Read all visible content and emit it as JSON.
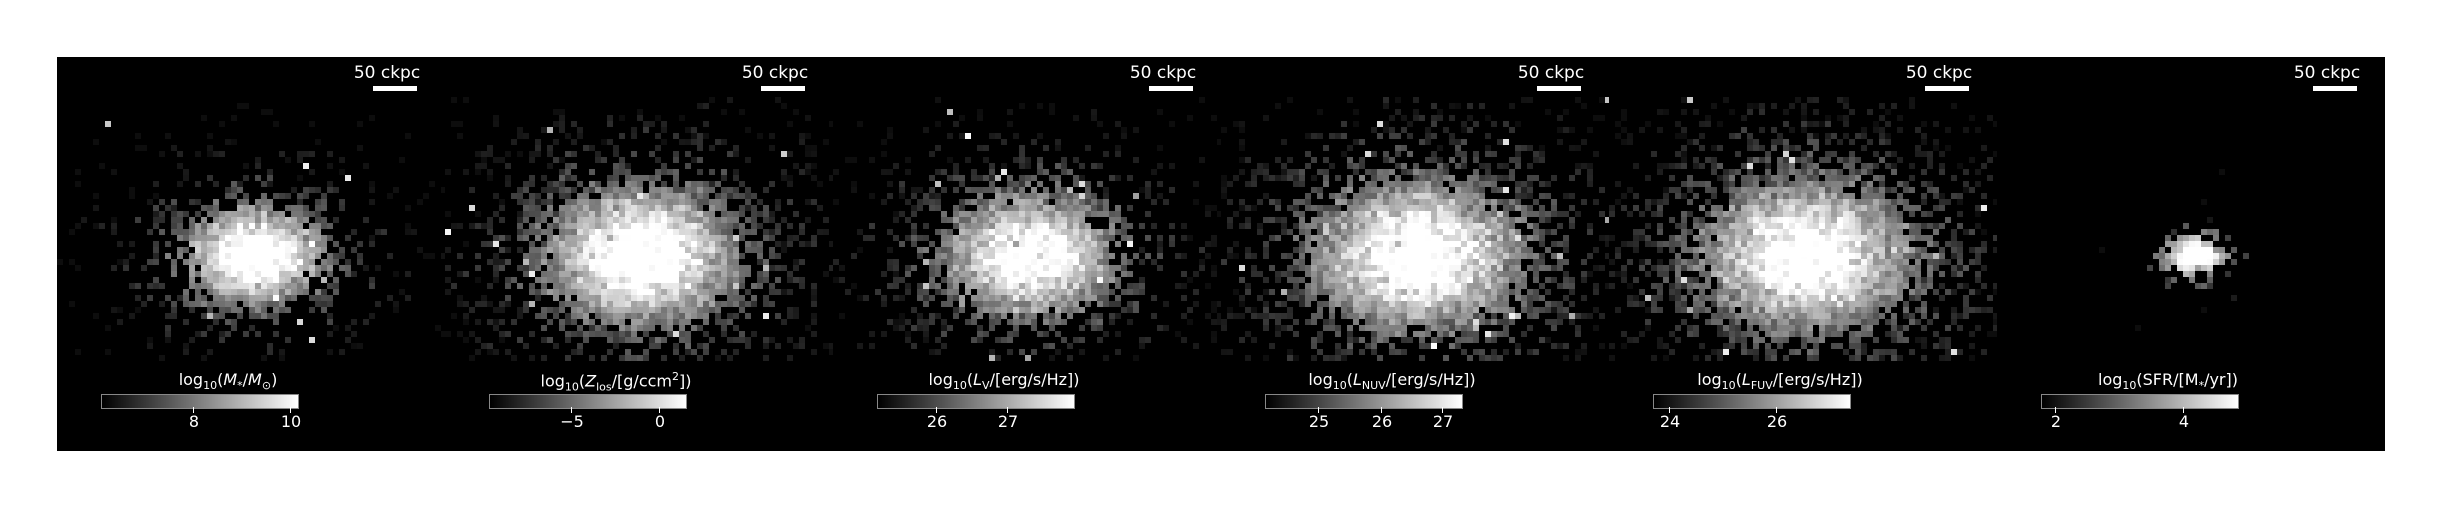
{
  "figure": {
    "panels": [
      {
        "id": "mass",
        "scale_label": "50 ckpc",
        "cb_label": "log10(M*/M⊙)",
        "ticks": [
          {
            "label": "8",
            "frac": 0.47
          },
          {
            "label": "10",
            "frac": 0.96
          }
        ],
        "blob_sigma": 0.75,
        "peak": 0.95,
        "sparsity": 0.35
      },
      {
        "id": "metal",
        "scale_label": "50 ckpc",
        "cb_label": "log10(Zlos/[g/ccm²])",
        "ticks": [
          {
            "label": "−5",
            "frac": 0.42
          },
          {
            "label": "0",
            "frac": 0.87
          }
        ],
        "blob_sigma": 1.0,
        "peak": 0.95,
        "sparsity": 0.55
      },
      {
        "id": "lv",
        "scale_label": "50 ckpc",
        "cb_label": "log10(LV/[erg/s/Hz])",
        "ticks": [
          {
            "label": "26",
            "frac": 0.3
          },
          {
            "label": "27",
            "frac": 0.66
          }
        ],
        "blob_sigma": 0.9,
        "peak": 0.9,
        "sparsity": 0.45
      },
      {
        "id": "lnuv",
        "scale_label": "50 ckpc",
        "cb_label": "log10(LNUV/[erg/s/Hz])",
        "ticks": [
          {
            "label": "25",
            "frac": 0.27
          },
          {
            "label": "26",
            "frac": 0.59
          },
          {
            "label": "27",
            "frac": 0.9
          }
        ],
        "blob_sigma": 1.1,
        "peak": 0.9,
        "sparsity": 0.55
      },
      {
        "id": "lfuv",
        "scale_label": "50 ckpc",
        "cb_label": "log10(LFUV/[erg/s/Hz])",
        "ticks": [
          {
            "label": "24",
            "frac": 0.08
          },
          {
            "label": "26",
            "frac": 0.63
          }
        ],
        "blob_sigma": 1.1,
        "peak": 0.9,
        "sparsity": 0.55
      },
      {
        "id": "sfr",
        "scale_label": "50 ckpc",
        "cb_label": "log10(SFR/[M*/yr])",
        "ticks": [
          {
            "label": "2",
            "frac": 0.07
          },
          {
            "label": "4",
            "frac": 0.72
          }
        ],
        "blob_sigma": 0.35,
        "peak": 0.95,
        "sparsity": 0.05
      }
    ]
  }
}
